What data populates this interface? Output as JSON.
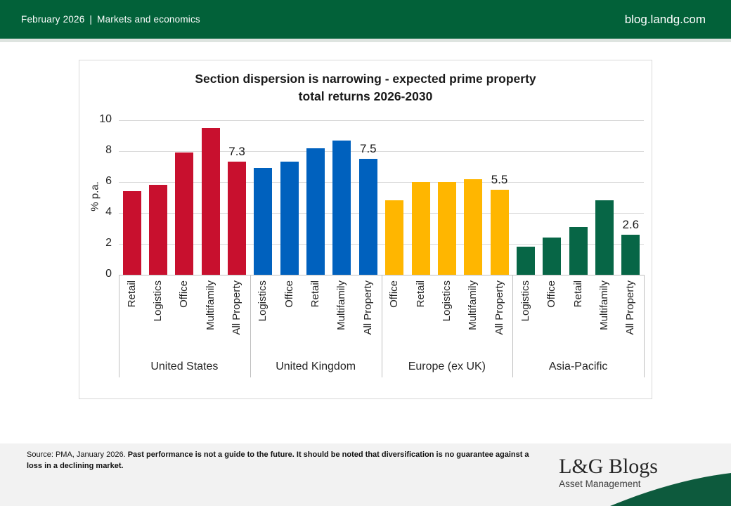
{
  "header": {
    "date": "February 2026",
    "separator": "|",
    "section": "Markets and economics",
    "site": "blog.landg.com",
    "bg_color": "#026139"
  },
  "chart_data": {
    "type": "bar",
    "title_line1": "Section dispersion is narrowing - expected prime property",
    "title_line2": "total returns 2026-2030",
    "ylabel": "% p.a.",
    "ylim": [
      0,
      10
    ],
    "yticks": [
      0,
      2,
      4,
      6,
      8,
      10
    ],
    "grid": true,
    "legend": "none",
    "groups": [
      {
        "name": "United States",
        "color": "#C8102E",
        "categories": [
          "Retail",
          "Logistics",
          "Office",
          "Multifamily",
          "All Property"
        ],
        "values": [
          5.4,
          5.8,
          7.9,
          9.5,
          7.3
        ],
        "callout": {
          "index": 4,
          "text": "7.3"
        }
      },
      {
        "name": "United Kingdom",
        "color": "#0061BE",
        "categories": [
          "Logistics",
          "Office",
          "Retail",
          "Multifamily",
          "All Property"
        ],
        "values": [
          6.9,
          7.3,
          8.2,
          8.7,
          7.5
        ],
        "callout": {
          "index": 4,
          "text": "7.5"
        }
      },
      {
        "name": "Europe (ex UK)",
        "color": "#FFB600",
        "categories": [
          "Office",
          "Retail",
          "Logistics",
          "Multifamily",
          "All Property"
        ],
        "values": [
          4.8,
          6.0,
          6.0,
          6.2,
          5.5
        ],
        "callout": {
          "index": 4,
          "text": "5.5"
        }
      },
      {
        "name": "Asia-Pacific",
        "color": "#076646",
        "categories": [
          "Logistics",
          "Office",
          "Retail",
          "Multifamily",
          "All Property"
        ],
        "values": [
          1.8,
          2.4,
          3.1,
          4.8,
          2.6
        ],
        "callout": {
          "index": 4,
          "text": "2.6"
        }
      }
    ],
    "colors": {
      "gridline": "#d9d9d9",
      "axis": "#bfbfbf"
    }
  },
  "footer": {
    "source_regular": "Source: PMA, January 2026. ",
    "source_bold": "Past performance is not a guide to the future. It should be noted that diversification is no guarantee against a loss in a declining market.",
    "logo_title": "L&G Blogs",
    "logo_subtitle": "Asset Management",
    "bg_color": "#f2f2f2",
    "swoosh_color": "#0d5a3d"
  }
}
